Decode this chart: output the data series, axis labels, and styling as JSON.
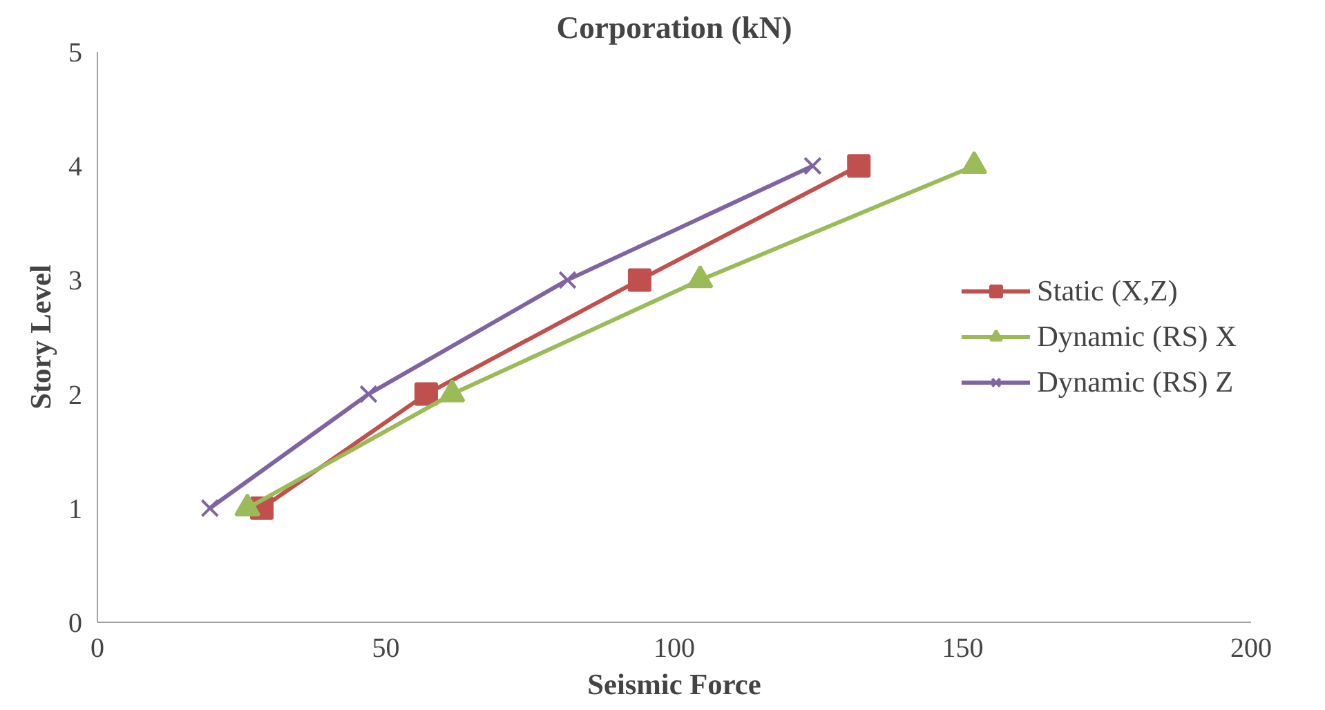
{
  "chart_data": {
    "type": "line",
    "title": "Corporation (kN)",
    "xlabel": "Seismic Force",
    "ylabel": "Story Level",
    "xlim": [
      0,
      200
    ],
    "xticks": [
      0,
      50,
      100,
      150,
      200
    ],
    "ylim": [
      0,
      5
    ],
    "yticks": [
      0,
      1,
      2,
      3,
      4,
      5
    ],
    "grid": false,
    "legend": "right",
    "series": [
      {
        "name": "Static (X,Z)",
        "color": "#c0504d",
        "marker": "square",
        "x": [
          28.5,
          57,
          94,
          132
        ],
        "values": [
          1,
          2,
          3,
          4
        ]
      },
      {
        "name": "Dynamic (RS) X",
        "color": "#9bbb59",
        "marker": "triangle",
        "x": [
          26,
          61.5,
          104.5,
          152
        ],
        "values": [
          1,
          2,
          3,
          4
        ]
      },
      {
        "name": "Dynamic (RS) Z",
        "color": "#8064a2",
        "marker": "cross",
        "x": [
          19.5,
          47,
          81.5,
          124
        ],
        "values": [
          1,
          2,
          3,
          4
        ]
      }
    ]
  }
}
